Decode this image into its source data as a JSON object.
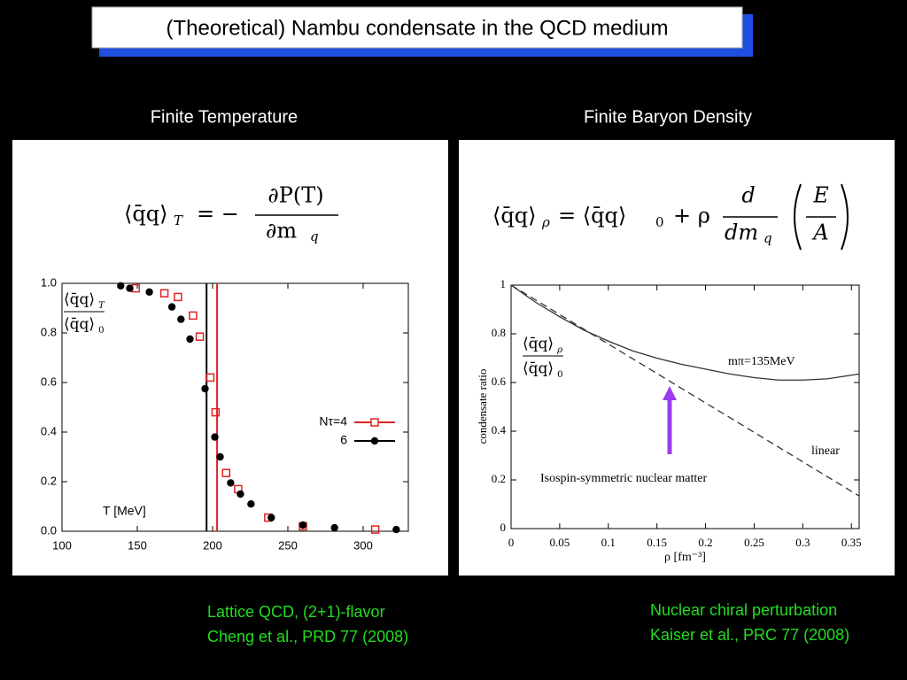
{
  "title": "(Theoretical) Nambu condensate in the QCD medium",
  "left_heading": "Finite Temperature",
  "right_heading": "Finite Baryon Density",
  "left_formula": {
    "lhs": "⟨q̄q⟩",
    "lhs_sub": "T",
    "eq": "= −",
    "num": "∂P(T)",
    "den": "∂m",
    "den_sub": "q"
  },
  "right_formula": {
    "lhs": "⟨q̄q⟩",
    "lhs_sub": "ρ",
    "eq": "= ⟨q̄q⟩",
    "eq_sub": "0",
    "plus": "+ ρ",
    "num": "d",
    "den": "dm",
    "den_sub": "q",
    "paren_num": "E",
    "paren_den": "A"
  },
  "left_citation": [
    "Lattice QCD, (2+1)-flavor",
    "Cheng et al., PRD 77 (2008)"
  ],
  "right_citation": [
    "Nuclear chiral perturbation",
    "Kaiser et al., PRC 77 (2008)"
  ],
  "chart_data": [
    {
      "type": "scatter",
      "ylabel": {
        "num": "⟨q̄q⟩",
        "num_sub": "T",
        "den": "⟨q̄q⟩",
        "den_sub": "0"
      },
      "xlabel": "T [MeV]",
      "xlim": [
        100,
        330
      ],
      "ylim": [
        0,
        1
      ],
      "xticks": [
        100,
        150,
        200,
        250,
        300
      ],
      "yticks": [
        {
          "value": 0,
          "label": "0.0"
        },
        0.2,
        0.4,
        0.6,
        0.8,
        {
          "value": 1,
          "label": "1.0"
        }
      ],
      "vlines": [
        {
          "x": 196,
          "color": "#000000"
        },
        {
          "x": 203,
          "color": "#dd2222"
        }
      ],
      "series": [
        {
          "name": "Nτ=4",
          "color": "#dd2222",
          "marker": "square",
          "x": [
            149,
            168,
            177,
            187,
            191.5,
            198.5,
            202,
            209,
            217,
            237,
            260,
            308
          ],
          "values": [
            0.98,
            0.96,
            0.945,
            0.87,
            0.785,
            0.62,
            0.48,
            0.235,
            0.17,
            0.055,
            0.02,
            0.007
          ]
        },
        {
          "name": "6",
          "color": "#000000",
          "marker": "circle",
          "x": [
            139,
            145,
            158,
            173,
            179,
            185,
            195,
            201.5,
            205,
            212,
            218.5,
            225.5,
            239,
            260,
            281,
            322
          ],
          "values": [
            0.99,
            0.98,
            0.965,
            0.905,
            0.855,
            0.775,
            0.575,
            0.38,
            0.3,
            0.195,
            0.15,
            0.11,
            0.055,
            0.025,
            0.014,
            0.007
          ]
        }
      ]
    },
    {
      "type": "line",
      "inset_label": {
        "num": "⟨q̄q⟩",
        "num_sub": "ρ",
        "den": "⟨q̄q⟩",
        "den_sub": "0"
      },
      "xlabel": "ρ [fm⁻³]",
      "ylabel": "condensate ratio",
      "xlim": [
        0,
        0.358
      ],
      "ylim": [
        0,
        1
      ],
      "xticks": [
        0,
        0.05,
        0.1,
        0.15,
        0.2,
        0.25,
        0.3,
        0.35
      ],
      "yticks": [
        0,
        0.2,
        0.4,
        0.6,
        0.8,
        1
      ],
      "annotations": [
        "mπ=135MeV",
        "linear",
        "Isospin-symmetric nuclear matter"
      ],
      "series": [
        {
          "color": "#333333",
          "style": "solid",
          "x": [
            0,
            0.025,
            0.05,
            0.075,
            0.1,
            0.125,
            0.15,
            0.175,
            0.2,
            0.225,
            0.25,
            0.275,
            0.3,
            0.325,
            0.35,
            0.358
          ],
          "values": [
            1,
            0.93,
            0.87,
            0.815,
            0.77,
            0.73,
            0.7,
            0.675,
            0.655,
            0.635,
            0.62,
            0.61,
            0.61,
            0.615,
            0.63,
            0.635
          ]
        },
        {
          "color": "#333333",
          "style": "dashed",
          "x": [
            0,
            0.358
          ],
          "values": [
            1,
            0.134
          ]
        }
      ]
    }
  ]
}
